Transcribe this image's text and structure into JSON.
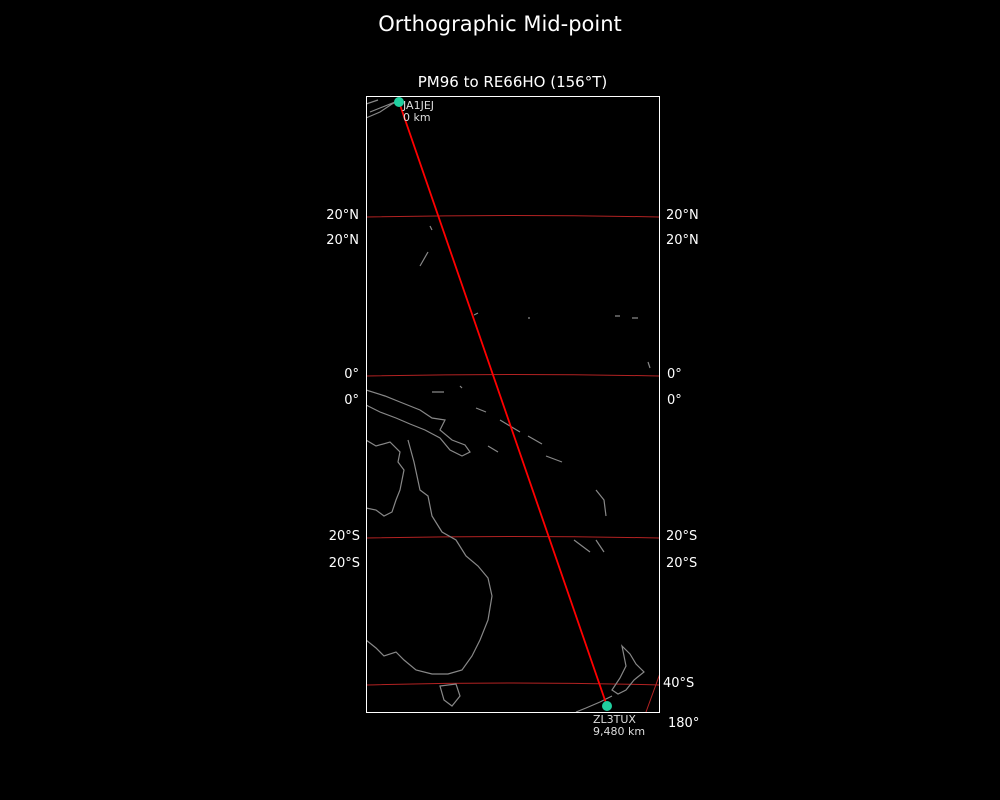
{
  "figure_title": "Orthographic Mid-point",
  "map_title": "PM96 to RE66HO (156°T)",
  "colors": {
    "background": "#000000",
    "path": "#ff0000",
    "graticule": "#b22222",
    "coast": "#888888",
    "station": "#20d0a0",
    "frame": "#ffffff"
  },
  "graticule_labels": {
    "lat_20n": "20°N",
    "lat_0": "0°",
    "lat_20s": "20°S",
    "lat_40s": "40°S",
    "lon_180": "180°"
  },
  "stations": [
    {
      "call": "JA1JEJ",
      "distance": "0 km"
    },
    {
      "call": "ZL3TUX",
      "distance": "9,480 km"
    }
  ]
}
